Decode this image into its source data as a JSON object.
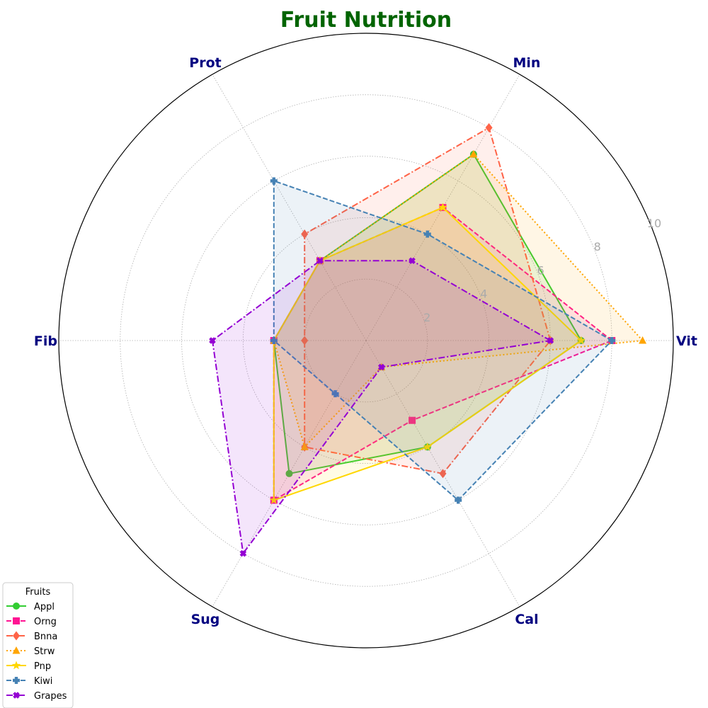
{
  "chart_data": {
    "type": "radar",
    "title": "Fruit Nutrition",
    "categories": [
      "Vit",
      "Min",
      "Prot",
      "Fib",
      "Sug",
      "Cal"
    ],
    "rlim": [
      0,
      10
    ],
    "rticks": [
      2,
      4,
      6,
      8,
      10
    ],
    "grid": true,
    "legend": {
      "title": "Fruits",
      "placement": "bottom-left"
    },
    "colors": {
      "title": "#006400",
      "axis_label": "#000080",
      "tick_label": "#aaaaaa"
    },
    "series": [
      {
        "name": "Appl",
        "values": [
          7,
          7,
          3,
          3,
          5,
          4
        ],
        "color": "#32cd32",
        "dash": "solid",
        "marker": "circle"
      },
      {
        "name": "Orng",
        "values": [
          8,
          5,
          3,
          3,
          6,
          3
        ],
        "color": "#ff1493",
        "dash": "dashed",
        "marker": "square"
      },
      {
        "name": "Bnna",
        "values": [
          6,
          8,
          4,
          2,
          4,
          5
        ],
        "color": "#ff6347",
        "dash": "dashdot",
        "marker": "diamond"
      },
      {
        "name": "Strw",
        "values": [
          9,
          7,
          3,
          3,
          4,
          1
        ],
        "color": "#ffa500",
        "dash": "dotted",
        "marker": "triangle"
      },
      {
        "name": "Pnp",
        "values": [
          7,
          5,
          3,
          3,
          6,
          4
        ],
        "color": "#ffd700",
        "dash": "solid",
        "marker": "star"
      },
      {
        "name": "Kiwi",
        "values": [
          8,
          4,
          6,
          3,
          2,
          6
        ],
        "color": "#4682b4",
        "dash": "dashed",
        "marker": "plus"
      },
      {
        "name": "Grapes",
        "values": [
          6,
          3,
          3,
          5,
          8,
          1
        ],
        "color": "#9400d3",
        "dash": "dashdot",
        "marker": "x"
      }
    ]
  }
}
